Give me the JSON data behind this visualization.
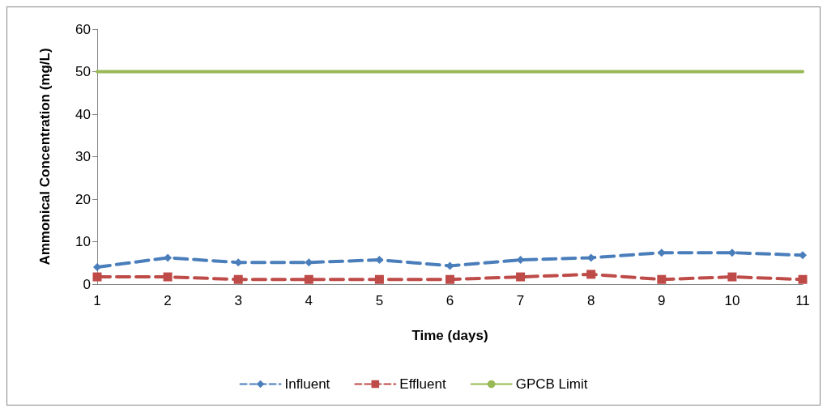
{
  "chart_data": {
    "type": "line",
    "xlabel": "Time (days)",
    "ylabel": "Ammonical Concentration (mg/L)",
    "categories": [
      "1",
      "2",
      "3",
      "4",
      "5",
      "6",
      "7",
      "8",
      "9",
      "10",
      "11"
    ],
    "series": [
      {
        "name": "Influent",
        "color": "#4a7ebb",
        "line_style": "dashed",
        "marker": "diamond",
        "values": [
          4.0,
          6.2,
          5.1,
          5.1,
          5.7,
          4.3,
          5.7,
          6.2,
          7.4,
          7.4,
          6.8
        ]
      },
      {
        "name": "Effluent",
        "color": "#be4b48",
        "line_style": "dashed",
        "marker": "square",
        "values": [
          1.7,
          1.7,
          1.1,
          1.1,
          1.1,
          1.1,
          1.7,
          2.3,
          1.1,
          1.7,
          1.1
        ]
      },
      {
        "name": "GPCB Limit",
        "color": "#98b954",
        "line_style": "solid",
        "marker": "none",
        "values": [
          50,
          50,
          50,
          50,
          50,
          50,
          50,
          50,
          50,
          50,
          50
        ]
      }
    ],
    "ylim": [
      0,
      60
    ],
    "yticks": [
      0,
      10,
      20,
      30,
      40,
      50,
      60
    ],
    "grid": false,
    "legend": "bottom"
  }
}
